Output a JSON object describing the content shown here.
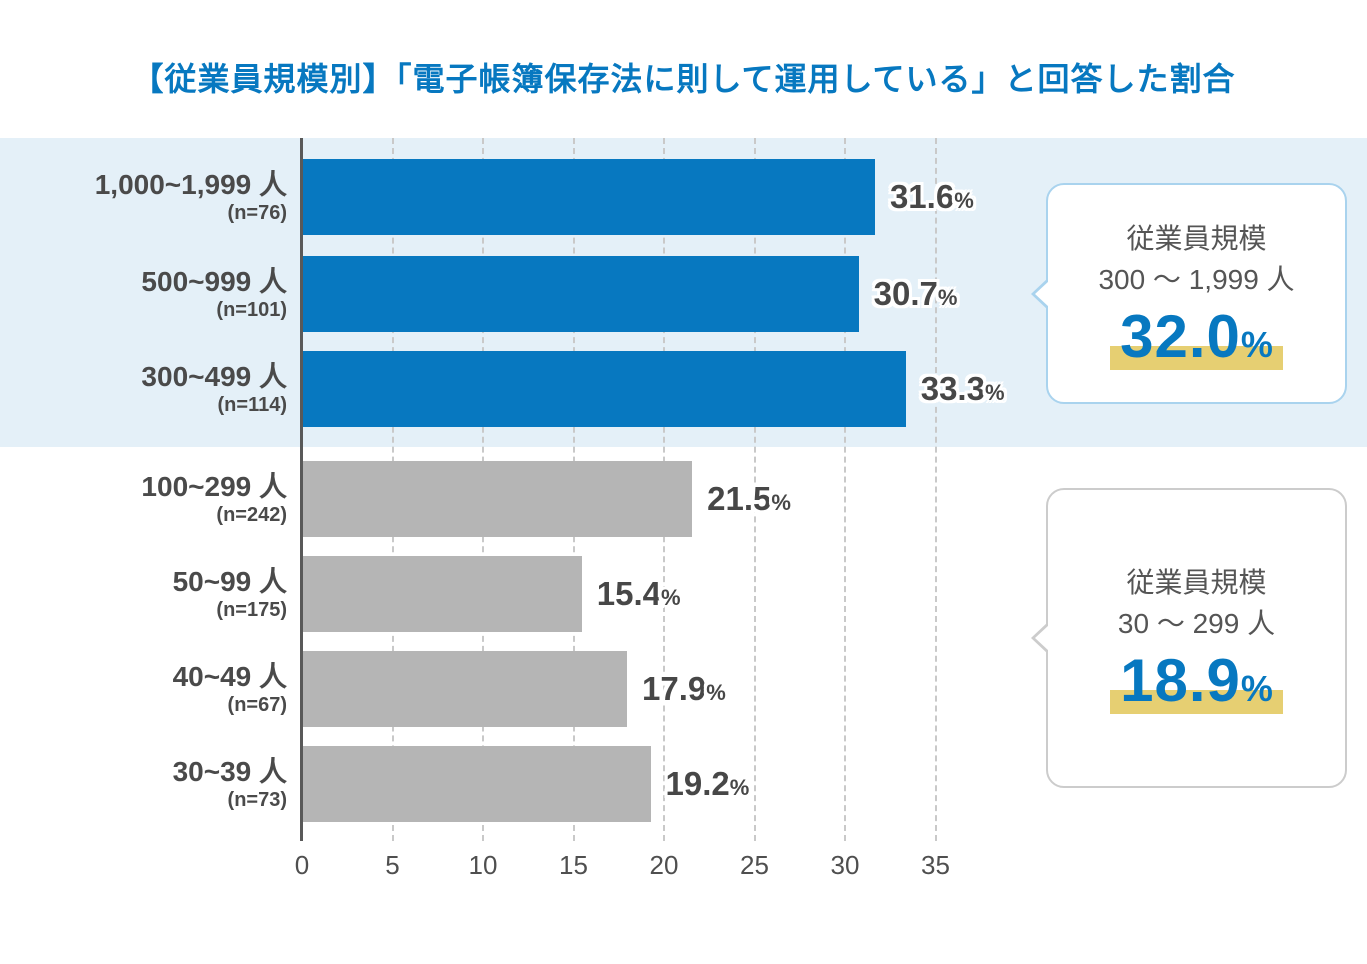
{
  "chart_data": {
    "type": "bar",
    "orientation": "horizontal",
    "title": "【従業員規模別】「電子帳簿保存法に則して運用している」と回答した割合",
    "categories": [
      "1,000~1,999 人",
      "500~999 人",
      "300~499 人",
      "100~299 人",
      "50~99 人",
      "40~49 人",
      "30~39 人"
    ],
    "sample_sizes": [
      "(n=76)",
      "(n=101)",
      "(n=114)",
      "(n=242)",
      "(n=175)",
      "(n=67)",
      "(n=73)"
    ],
    "values": [
      31.6,
      30.7,
      33.3,
      21.5,
      15.4,
      17.9,
      19.2
    ],
    "value_labels": [
      "31.6",
      "30.7",
      "33.3",
      "21.5",
      "15.4",
      "17.9",
      "19.2"
    ],
    "unit": "%",
    "xlim": [
      0,
      35
    ],
    "x_ticks": [
      0,
      5,
      10,
      15,
      20,
      25,
      30,
      35
    ],
    "grid": "dashed-vertical-gridlines",
    "legend": "none",
    "highlighted_rows": [
      0,
      1,
      2
    ],
    "bar_colors": {
      "highlighted": "#0778c0",
      "normal": "#b5b5b5"
    }
  },
  "callouts": [
    {
      "line1": "従業員規模",
      "line2": "300 〜 1,999 人",
      "value": "32.0",
      "unit": "%"
    },
    {
      "line1": "従業員規模",
      "line2": "30 〜 299 人",
      "value": "18.9",
      "unit": "%"
    }
  ],
  "colors": {
    "title_blue": "#0778c0",
    "band_background": "#e4f0f8",
    "axis": "#595959",
    "gridline": "#c9c9c9",
    "text_dark": "#4a4a4a",
    "callout1_border": "#a9d3ee",
    "callout2_border": "#cccccc",
    "highlight_yellow": "#e6cf72"
  }
}
